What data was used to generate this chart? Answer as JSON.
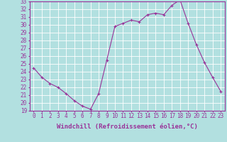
{
  "x": [
    0,
    1,
    2,
    3,
    4,
    5,
    6,
    7,
    8,
    9,
    10,
    11,
    12,
    13,
    14,
    15,
    16,
    17,
    18,
    19,
    20,
    21,
    22,
    23
  ],
  "y": [
    24.5,
    23.3,
    22.5,
    22.0,
    21.2,
    20.3,
    19.6,
    19.2,
    21.2,
    25.5,
    29.8,
    30.2,
    30.6,
    30.4,
    31.3,
    31.5,
    31.3,
    32.5,
    33.2,
    30.2,
    27.5,
    25.2,
    23.3,
    21.5
  ],
  "line_color": "#993399",
  "marker_color": "#993399",
  "bg_color": "#b2e0e0",
  "grid_color": "#ffffff",
  "xlabel": "Windchill (Refroidissement éolien,°C)",
  "ylim": [
    19,
    33
  ],
  "xlim": [
    -0.5,
    23.5
  ],
  "yticks": [
    19,
    20,
    21,
    22,
    23,
    24,
    25,
    26,
    27,
    28,
    29,
    30,
    31,
    32,
    33
  ],
  "xticks": [
    0,
    1,
    2,
    3,
    4,
    5,
    6,
    7,
    8,
    9,
    10,
    11,
    12,
    13,
    14,
    15,
    16,
    17,
    18,
    19,
    20,
    21,
    22,
    23
  ],
  "xlabel_fontsize": 6.5,
  "tick_fontsize": 5.5,
  "marker_size": 2.5,
  "line_width": 0.8
}
